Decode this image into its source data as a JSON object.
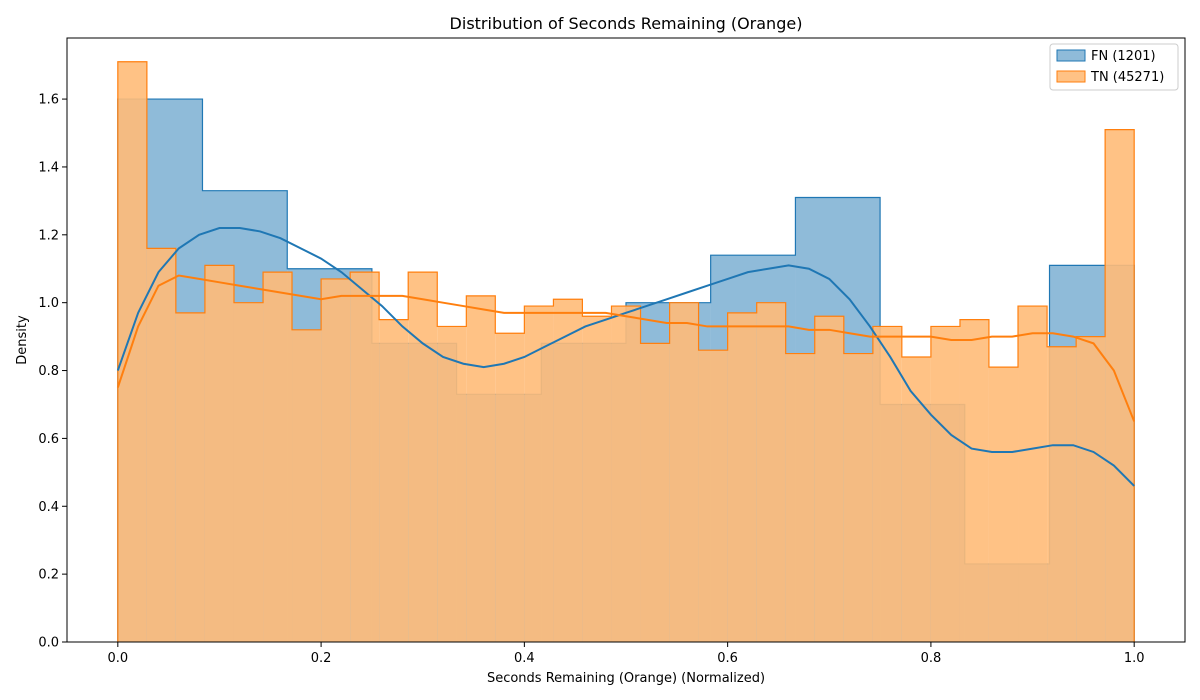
{
  "chart_data": {
    "type": "histogram",
    "title": "Distribution of Seconds Remaining (Orange)",
    "xlabel": "Seconds Remaining (Orange) (Normalized)",
    "ylabel": "Density",
    "xlim": [
      -0.05,
      1.05
    ],
    "ylim": [
      0,
      1.78
    ],
    "xticks": [
      0.0,
      0.2,
      0.4,
      0.6,
      0.8,
      1.0
    ],
    "xtick_labels": [
      "0.0",
      "0.2",
      "0.4",
      "0.6",
      "0.8",
      "1.0"
    ],
    "yticks": [
      0.0,
      0.2,
      0.4,
      0.6,
      0.8,
      1.0,
      1.2,
      1.4,
      1.6
    ],
    "ytick_labels": [
      "0.0",
      "0.2",
      "0.4",
      "0.6",
      "0.8",
      "1.0",
      "1.2",
      "1.4",
      "1.6"
    ],
    "grid": false,
    "legend_position": "top-right",
    "series": [
      {
        "name": "FN (1201)",
        "color": "#1f77b4",
        "fill_color": "#1f77b4",
        "bin_edges": [
          0.0,
          0.0833,
          0.1667,
          0.25,
          0.3333,
          0.4167,
          0.5,
          0.5833,
          0.6667,
          0.75,
          0.8333,
          0.9167,
          1.0
        ],
        "values": [
          1.6,
          1.33,
          1.1,
          0.88,
          0.73,
          0.88,
          1.0,
          1.14,
          1.31,
          0.7,
          0.23,
          1.11
        ],
        "kde_x": [
          0.0,
          0.02,
          0.04,
          0.06,
          0.08,
          0.1,
          0.12,
          0.14,
          0.16,
          0.18,
          0.2,
          0.22,
          0.24,
          0.26,
          0.28,
          0.3,
          0.32,
          0.34,
          0.36,
          0.38,
          0.4,
          0.42,
          0.44,
          0.46,
          0.48,
          0.5,
          0.52,
          0.54,
          0.56,
          0.58,
          0.6,
          0.62,
          0.64,
          0.66,
          0.68,
          0.7,
          0.72,
          0.74,
          0.76,
          0.78,
          0.8,
          0.82,
          0.84,
          0.86,
          0.88,
          0.9,
          0.92,
          0.94,
          0.96,
          0.98,
          1.0
        ],
        "kde_y": [
          0.8,
          0.97,
          1.09,
          1.16,
          1.2,
          1.22,
          1.22,
          1.21,
          1.19,
          1.16,
          1.13,
          1.09,
          1.04,
          0.99,
          0.93,
          0.88,
          0.84,
          0.82,
          0.81,
          0.82,
          0.84,
          0.87,
          0.9,
          0.93,
          0.95,
          0.97,
          0.99,
          1.01,
          1.03,
          1.05,
          1.07,
          1.09,
          1.1,
          1.11,
          1.1,
          1.07,
          1.01,
          0.93,
          0.84,
          0.74,
          0.67,
          0.61,
          0.57,
          0.56,
          0.56,
          0.57,
          0.58,
          0.58,
          0.56,
          0.52,
          0.46
        ]
      },
      {
        "name": "TN (45271)",
        "color": "#ff7f0e",
        "fill_color": "#ffbb78",
        "bin_edges": [
          0.0,
          0.0286,
          0.0571,
          0.0857,
          0.1143,
          0.1429,
          0.1714,
          0.2,
          0.2286,
          0.2571,
          0.2857,
          0.3143,
          0.3429,
          0.3714,
          0.4,
          0.4286,
          0.4571,
          0.4857,
          0.5143,
          0.5429,
          0.5714,
          0.6,
          0.6286,
          0.6571,
          0.6857,
          0.7143,
          0.7429,
          0.7714,
          0.8,
          0.8286,
          0.8571,
          0.8857,
          0.9143,
          0.9429,
          0.9714,
          1.0
        ],
        "values": [
          1.71,
          1.16,
          0.97,
          1.11,
          1.0,
          1.09,
          0.92,
          1.07,
          1.09,
          0.95,
          1.09,
          0.93,
          1.02,
          0.91,
          0.99,
          1.01,
          0.96,
          0.99,
          0.88,
          1.0,
          0.86,
          0.97,
          1.0,
          0.85,
          0.96,
          0.85,
          0.93,
          0.84,
          0.93,
          0.95,
          0.81,
          0.99,
          0.87,
          0.9,
          1.51
        ],
        "kde_x": [
          0.0,
          0.02,
          0.04,
          0.06,
          0.08,
          0.1,
          0.12,
          0.14,
          0.16,
          0.18,
          0.2,
          0.22,
          0.24,
          0.26,
          0.28,
          0.3,
          0.32,
          0.34,
          0.36,
          0.38,
          0.4,
          0.42,
          0.44,
          0.46,
          0.48,
          0.5,
          0.52,
          0.54,
          0.56,
          0.58,
          0.6,
          0.62,
          0.64,
          0.66,
          0.68,
          0.7,
          0.72,
          0.74,
          0.76,
          0.78,
          0.8,
          0.82,
          0.84,
          0.86,
          0.88,
          0.9,
          0.92,
          0.94,
          0.96,
          0.98,
          1.0
        ],
        "kde_y": [
          0.75,
          0.93,
          1.05,
          1.08,
          1.07,
          1.06,
          1.05,
          1.04,
          1.03,
          1.02,
          1.01,
          1.02,
          1.02,
          1.02,
          1.02,
          1.01,
          1.0,
          0.99,
          0.98,
          0.97,
          0.97,
          0.97,
          0.97,
          0.97,
          0.97,
          0.96,
          0.95,
          0.94,
          0.94,
          0.93,
          0.93,
          0.93,
          0.93,
          0.93,
          0.92,
          0.92,
          0.91,
          0.9,
          0.9,
          0.9,
          0.9,
          0.89,
          0.89,
          0.9,
          0.9,
          0.91,
          0.91,
          0.9,
          0.88,
          0.8,
          0.65
        ]
      }
    ]
  }
}
